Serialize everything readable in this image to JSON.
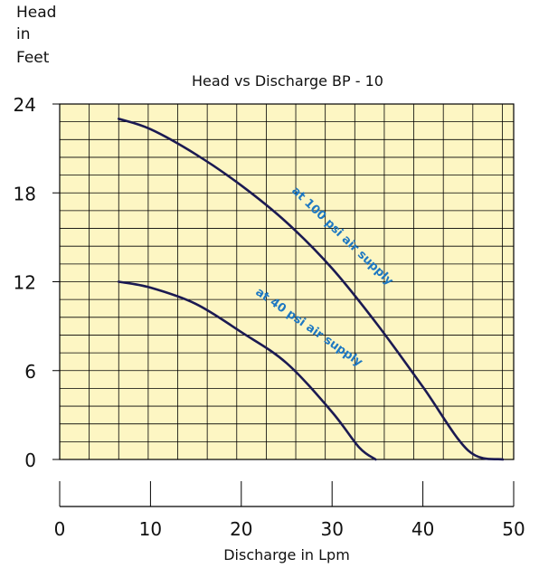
{
  "chart_data": {
    "type": "line",
    "title": "Head vs Discharge BP - 10",
    "ylabel_lines": [
      "Head",
      "in",
      "Feet"
    ],
    "xlabel": "Discharge in Lpm",
    "xlim": [
      0,
      50
    ],
    "ylim": [
      0,
      24
    ],
    "x_ticks": [
      "0",
      "10",
      "20",
      "30",
      "40",
      "50"
    ],
    "y_ticks": [
      "0",
      "6",
      "12",
      "18",
      "24"
    ],
    "grid": true,
    "grid_x_step": 3.25,
    "grid_y_step": 1.2,
    "series": [
      {
        "name": "at 100 psi air supply",
        "x": [
          6.5,
          10,
          15,
          20,
          25,
          30,
          35,
          40,
          45,
          48.8
        ],
        "y": [
          23.0,
          22.3,
          20.6,
          18.5,
          16.0,
          12.9,
          9.1,
          4.9,
          0.6,
          0
        ]
      },
      {
        "name": "at 40 psi air supply",
        "x": [
          6.5,
          10,
          15,
          20,
          25,
          30,
          33,
          34.8
        ],
        "y": [
          12.0,
          11.6,
          10.5,
          8.6,
          6.5,
          3.2,
          0.8,
          0
        ]
      }
    ],
    "colors": {
      "plot_bg": "#fdf6c3",
      "grid": "#000000",
      "line": "#1b1a52",
      "annotation": "#1e78c2"
    }
  }
}
